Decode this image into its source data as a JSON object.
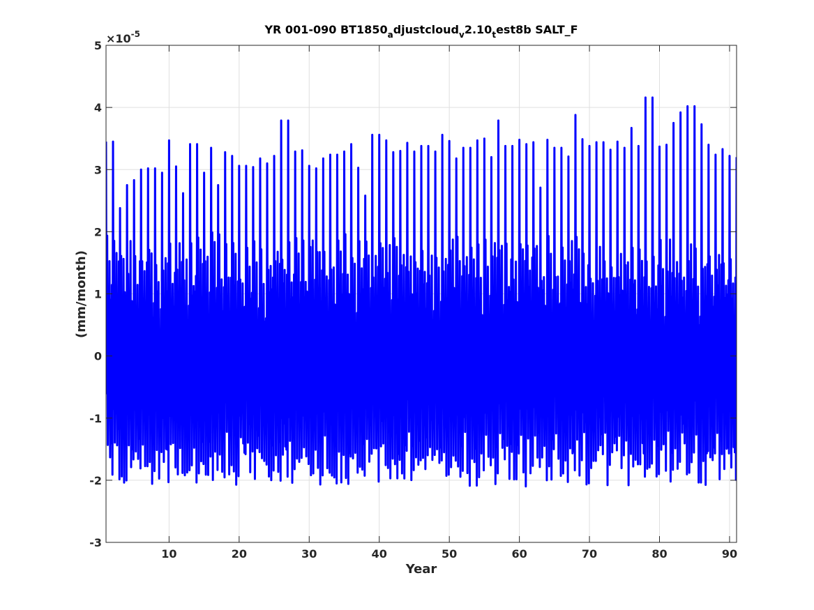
{
  "chart_data": {
    "type": "line",
    "title_parts": [
      {
        "text": "YR 001-090 BT1850",
        "shift": "none"
      },
      {
        "text": "a",
        "shift": "sub"
      },
      {
        "text": "djustcloud",
        "shift": "none"
      },
      {
        "text": "v",
        "shift": "sub"
      },
      {
        "text": "2.10",
        "shift": "none"
      },
      {
        "text": "t",
        "shift": "sub"
      },
      {
        "text": "est8b SALT_F",
        "shift": "none"
      }
    ],
    "xlabel": "Year",
    "ylabel": "(mm/month)",
    "y_exponent_base": "×10",
    "y_exponent_power": "-5",
    "xlim": [
      1,
      91
    ],
    "ylim": [
      -3,
      5
    ],
    "x_ticks": [
      10,
      20,
      30,
      40,
      50,
      60,
      70,
      80,
      90
    ],
    "x_tick_labels": [
      "10",
      "20",
      "30",
      "40",
      "50",
      "60",
      "70",
      "80",
      "90"
    ],
    "y_ticks": [
      -3,
      -2,
      -1,
      0,
      1,
      2,
      3,
      4,
      5
    ],
    "y_tick_labels": [
      "-3",
      "-2",
      "-1",
      "0",
      "1",
      "2",
      "3",
      "4",
      "5"
    ],
    "grid": true,
    "line_color": "#0000ff",
    "series": [
      {
        "samples_per_year": 12,
        "annual_peaks": [
          3.45,
          2.38,
          2.75,
          2.83,
          3.0,
          3.02,
          2.95,
          3.47,
          3.05,
          2.62,
          3.41,
          2.95,
          3.35,
          2.75,
          3.28,
          3.22,
          3.06,
          3.04,
          3.18,
          3.1,
          3.22,
          3.79,
          3.29,
          3.31,
          3.06,
          3.02,
          3.18,
          3.24,
          3.29,
          3.41,
          3.03,
          2.58,
          3.56,
          3.47,
          3.28,
          3.3,
          3.43,
          3.29,
          3.38,
          3.29,
          3.56,
          3.46,
          3.18,
          3.35,
          3.47,
          3.5,
          3.2,
          3.79,
          3.38,
          3.48,
          3.41,
          3.44,
          2.71,
          3.48,
          3.35,
          3.21,
          3.88,
          3.49,
          3.38,
          3.44,
          3.32,
          3.45,
          3.35,
          3.67,
          3.38,
          4.16,
          3.37,
          3.4,
          3.75,
          3.92,
          4.02,
          3.73,
          3.4,
          3.24,
          3.33,
          3.22
        ]
      }
    ]
  }
}
